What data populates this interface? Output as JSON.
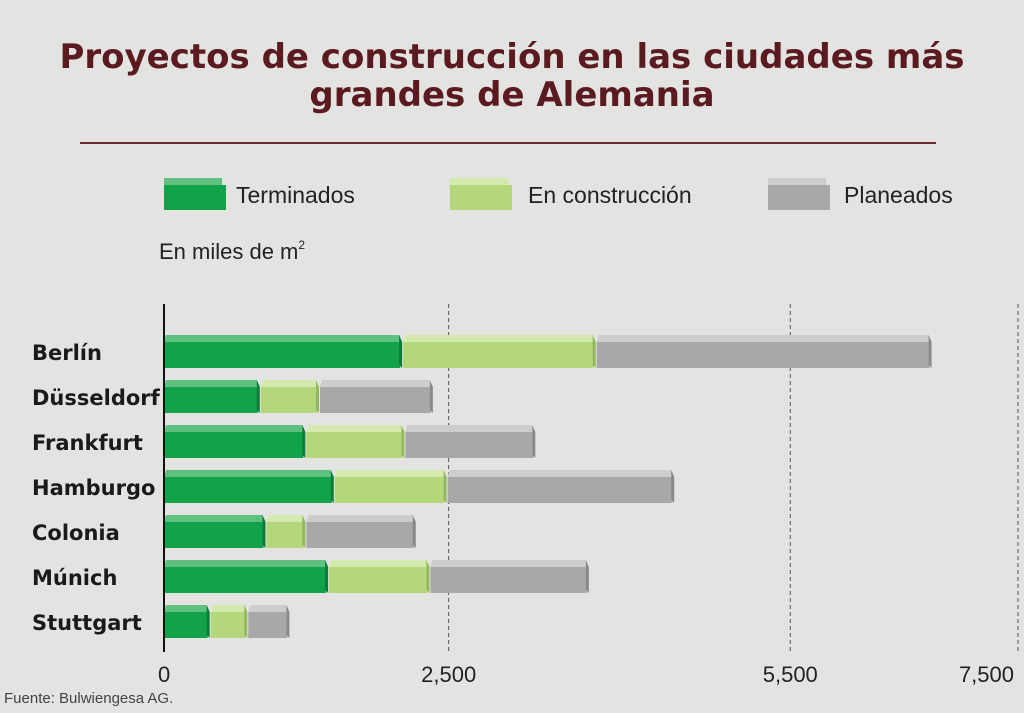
{
  "header": {
    "title_line1": "Proyectos de construcción en las ciudades más",
    "title_line2": "grandes de Alemania"
  },
  "unit_label": "En miles de m",
  "unit_superscript": "2",
  "source": "Fuente: Bulwiengesa AG.",
  "colors": {
    "terminados": "#12a24a",
    "en_construccion": "#b3d77a",
    "planeados": "#a8a8a8",
    "title": "#5a1a1f"
  },
  "chart_data": {
    "type": "bar",
    "orientation": "horizontal",
    "stacked": true,
    "categories": [
      "Berlín",
      "Düsseldorf",
      "Frankfurt",
      "Hamburgo",
      "Colonia",
      "Múnich",
      "Stuttgart"
    ],
    "series": [
      {
        "name": "Terminados",
        "values": [
          2100,
          850,
          1250,
          1500,
          900,
          1450,
          410
        ]
      },
      {
        "name": "En construcción",
        "values": [
          1700,
          520,
          870,
          990,
          350,
          890,
          330
        ]
      },
      {
        "name": "Planeados",
        "values": [
          2950,
          1000,
          1150,
          2000,
          970,
          1400,
          370
        ]
      }
    ],
    "x_ticks": [
      {
        "label": "0",
        "value": 0
      },
      {
        "label": "2,500",
        "value": 2500
      },
      {
        "label": "5,500",
        "value": 5500
      },
      {
        "label": "7,500",
        "value": 7500
      }
    ],
    "xlim": [
      0,
      7500
    ],
    "grid": "vertical dashed",
    "legend_position": "top"
  }
}
